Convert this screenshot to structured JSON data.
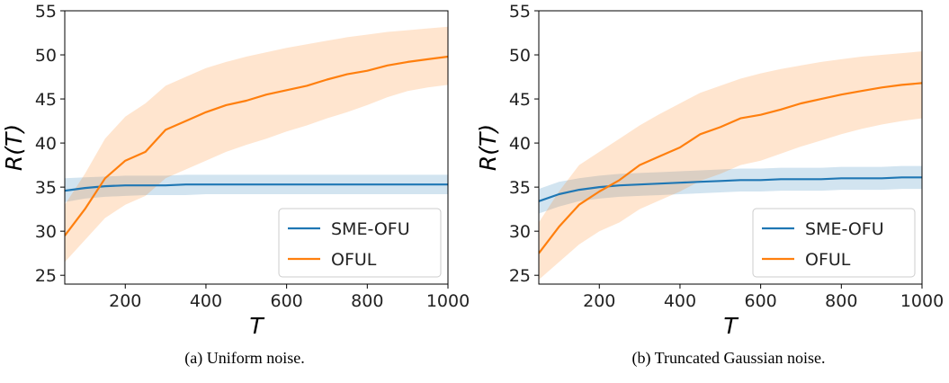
{
  "chart_data": [
    {
      "type": "line",
      "caption": "(a) Uniform noise.",
      "xlabel": "T",
      "ylabel": "R(T)",
      "xlim": [
        50,
        1000
      ],
      "ylim": [
        24,
        55
      ],
      "xticks": [
        200,
        400,
        600,
        800,
        1000
      ],
      "yticks": [
        25,
        30,
        35,
        40,
        45,
        50,
        55
      ],
      "legend_position": "bottom-right",
      "x": [
        50,
        100,
        150,
        200,
        250,
        300,
        350,
        400,
        450,
        500,
        550,
        600,
        650,
        700,
        750,
        800,
        850,
        900,
        950,
        1000
      ],
      "series": [
        {
          "name": "SME-OFU",
          "color": "#1f77b4",
          "values": [
            34.6,
            34.9,
            35.1,
            35.2,
            35.2,
            35.2,
            35.3,
            35.3,
            35.3,
            35.3,
            35.3,
            35.3,
            35.3,
            35.3,
            35.3,
            35.3,
            35.3,
            35.3,
            35.3,
            35.3
          ],
          "band_lower": [
            33.3,
            33.7,
            33.9,
            34.0,
            34.1,
            34.1,
            34.1,
            34.2,
            34.2,
            34.2,
            34.2,
            34.2,
            34.2,
            34.2,
            34.2,
            34.2,
            34.2,
            34.2,
            34.2,
            34.2
          ],
          "band_upper": [
            36.0,
            36.1,
            36.2,
            36.3,
            36.3,
            36.3,
            36.4,
            36.4,
            36.4,
            36.4,
            36.4,
            36.4,
            36.4,
            36.4,
            36.4,
            36.4,
            36.4,
            36.4,
            36.4,
            36.4
          ]
        },
        {
          "name": "OFUL",
          "color": "#ff7f0e",
          "values": [
            29.5,
            32.5,
            36.0,
            38.0,
            39.0,
            41.5,
            42.5,
            43.5,
            44.3,
            44.8,
            45.5,
            46.0,
            46.5,
            47.2,
            47.8,
            48.2,
            48.8,
            49.2,
            49.5,
            49.8
          ],
          "band_lower": [
            26.5,
            29.0,
            31.5,
            33.0,
            34.0,
            36.0,
            37.0,
            38.0,
            39.0,
            39.8,
            40.5,
            41.3,
            42.0,
            42.8,
            43.5,
            44.3,
            45.2,
            45.9,
            46.3,
            46.6
          ],
          "band_upper": [
            33.0,
            36.5,
            40.5,
            43.0,
            44.5,
            46.5,
            47.5,
            48.5,
            49.2,
            49.8,
            50.3,
            50.8,
            51.2,
            51.6,
            52.0,
            52.3,
            52.6,
            52.8,
            53.0,
            53.2
          ]
        }
      ]
    },
    {
      "type": "line",
      "caption": "(b) Truncated Gaussian noise.",
      "xlabel": "T",
      "ylabel": "R(T)",
      "xlim": [
        50,
        1000
      ],
      "ylim": [
        24,
        55
      ],
      "xticks": [
        200,
        400,
        600,
        800,
        1000
      ],
      "yticks": [
        25,
        30,
        35,
        40,
        45,
        50,
        55
      ],
      "legend_position": "bottom-right",
      "x": [
        50,
        100,
        150,
        200,
        250,
        300,
        350,
        400,
        450,
        500,
        550,
        600,
        650,
        700,
        750,
        800,
        850,
        900,
        950,
        1000
      ],
      "series": [
        {
          "name": "SME-OFU",
          "color": "#1f77b4",
          "values": [
            33.4,
            34.2,
            34.7,
            35.0,
            35.2,
            35.3,
            35.4,
            35.5,
            35.6,
            35.7,
            35.8,
            35.8,
            35.9,
            35.9,
            35.9,
            36.0,
            36.0,
            36.0,
            36.1,
            36.1
          ],
          "band_lower": [
            32.0,
            32.8,
            33.4,
            33.7,
            33.9,
            34.0,
            34.1,
            34.2,
            34.3,
            34.4,
            34.5,
            34.5,
            34.6,
            34.6,
            34.6,
            34.7,
            34.7,
            34.7,
            34.8,
            34.8
          ],
          "band_upper": [
            34.8,
            35.6,
            36.0,
            36.3,
            36.5,
            36.6,
            36.7,
            36.8,
            36.9,
            37.0,
            37.1,
            37.1,
            37.2,
            37.2,
            37.2,
            37.3,
            37.3,
            37.3,
            37.4,
            37.4
          ]
        },
        {
          "name": "OFUL",
          "color": "#ff7f0e",
          "values": [
            27.5,
            30.5,
            33.0,
            34.5,
            35.8,
            37.5,
            38.5,
            39.5,
            41.0,
            41.8,
            42.8,
            43.2,
            43.8,
            44.5,
            45.0,
            45.5,
            45.9,
            46.3,
            46.6,
            46.8
          ],
          "band_lower": [
            24.5,
            26.5,
            28.5,
            30.0,
            31.0,
            32.5,
            33.5,
            34.5,
            35.7,
            36.5,
            37.5,
            38.0,
            38.8,
            39.6,
            40.3,
            41.0,
            41.6,
            42.1,
            42.5,
            42.8
          ],
          "band_upper": [
            31.0,
            34.5,
            37.5,
            39.0,
            40.5,
            42.0,
            43.3,
            44.5,
            45.7,
            46.5,
            47.3,
            47.9,
            48.4,
            48.8,
            49.2,
            49.5,
            49.8,
            50.0,
            50.2,
            50.4
          ]
        }
      ]
    }
  ]
}
